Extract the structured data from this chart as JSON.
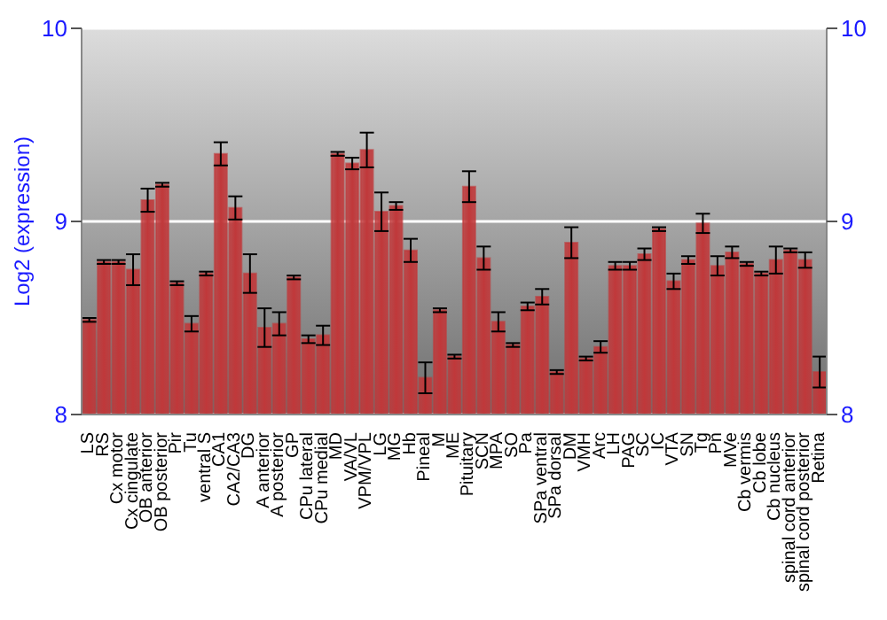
{
  "chart_data": {
    "type": "bar",
    "ylabel": "Log2 (expression)",
    "categories": [
      "LS",
      "RS",
      "Cx motor",
      "Cx cingulate",
      "OB anterior",
      "OB posterior",
      "Pir",
      "Tu",
      "ventral S",
      "CA1",
      "CA2/CA3",
      "DG",
      "A anterior",
      "A posterior",
      "GP",
      "CPu lateral",
      "CPu medial",
      "MD",
      "VA/VL",
      "VPM/VPL",
      "LG",
      "MG",
      "Hb",
      "Pineal",
      "M",
      "ME",
      "Pituitary",
      "SCN",
      "MPA",
      "SO",
      "Pa",
      "SPa ventral",
      "SPa dorsal",
      "DM",
      "VMH",
      "Arc",
      "LH",
      "PAG",
      "SC",
      "IC",
      "VTA",
      "SN",
      "Tg",
      "Pn",
      "MVe",
      "Cb vermis",
      "Cb lobe",
      "Cb nucleus",
      "spinal cord anterior",
      "spinal cord posterior",
      "Retina"
    ],
    "values": [
      8.49,
      8.79,
      8.79,
      8.75,
      9.11,
      9.19,
      8.68,
      8.47,
      8.73,
      9.35,
      9.07,
      8.73,
      8.45,
      8.47,
      8.71,
      8.39,
      8.41,
      9.35,
      9.3,
      9.37,
      9.05,
      9.08,
      8.85,
      8.19,
      8.54,
      8.3,
      9.18,
      8.81,
      8.48,
      8.36,
      8.56,
      8.61,
      8.22,
      8.89,
      8.29,
      8.35,
      8.77,
      8.77,
      8.83,
      8.96,
      8.69,
      8.8,
      8.99,
      8.77,
      8.84,
      8.78,
      8.73,
      8.8,
      8.85,
      8.8,
      8.22
    ],
    "errors": [
      0.01,
      0.01,
      0.01,
      0.08,
      0.06,
      0.01,
      0.01,
      0.04,
      0.01,
      0.06,
      0.06,
      0.1,
      0.1,
      0.06,
      0.01,
      0.02,
      0.05,
      0.01,
      0.03,
      0.09,
      0.1,
      0.02,
      0.06,
      0.08,
      0.01,
      0.01,
      0.08,
      0.06,
      0.05,
      0.01,
      0.02,
      0.04,
      0.01,
      0.08,
      0.01,
      0.03,
      0.02,
      0.02,
      0.03,
      0.01,
      0.04,
      0.02,
      0.05,
      0.05,
      0.03,
      0.01,
      0.01,
      0.07,
      0.01,
      0.04,
      0.08
    ],
    "color": "#c0383a",
    "ylim": [
      8,
      10
    ],
    "yticks": [
      8,
      9,
      10
    ],
    "y2lim": [
      8,
      10
    ],
    "y2ticks": [
      8,
      9,
      10
    ],
    "grid": "y"
  }
}
